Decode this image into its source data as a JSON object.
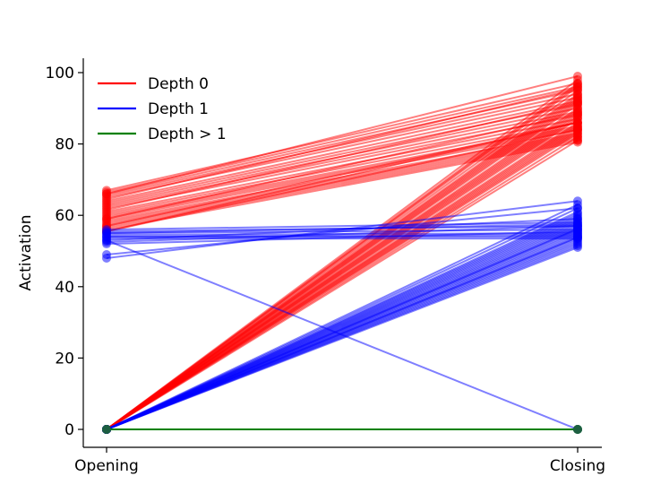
{
  "chart_data": {
    "type": "line",
    "title": "",
    "xlabel": "",
    "ylabel": "Activation",
    "categories": [
      "Opening",
      "Closing"
    ],
    "ylim": [
      -4,
      103
    ],
    "yticks": [
      0,
      20,
      40,
      60,
      80,
      100
    ],
    "grid": false,
    "legend_position": "top-left",
    "legend": [
      {
        "name": "Depth 0",
        "color": "#ff0000"
      },
      {
        "name": "Depth 1",
        "color": "#0000ff"
      },
      {
        "name": "Depth > 1",
        "color": "#008000"
      }
    ],
    "series": [
      {
        "name": "Depth 0",
        "color": "#ff0000",
        "pairs": [
          [
            67,
            97
          ],
          [
            66.5,
            96
          ],
          [
            66,
            95
          ],
          [
            65.5,
            94
          ],
          [
            65,
            93
          ],
          [
            64,
            92
          ],
          [
            63.5,
            91
          ],
          [
            63,
            90
          ],
          [
            62.5,
            89
          ],
          [
            62,
            88
          ],
          [
            61,
            87
          ],
          [
            60.5,
            86
          ],
          [
            60,
            85
          ],
          [
            59.5,
            84.5
          ],
          [
            59,
            84
          ],
          [
            58.5,
            83
          ],
          [
            58,
            82.5
          ],
          [
            57.5,
            82
          ],
          [
            57,
            81.5
          ],
          [
            56.5,
            81
          ],
          [
            56,
            80.5
          ],
          [
            55.5,
            86
          ],
          [
            66,
            99
          ],
          [
            64.5,
            95.5
          ],
          [
            61.5,
            91.5
          ],
          [
            59,
            88.5
          ],
          [
            57,
            86
          ],
          [
            55.5,
            84
          ],
          [
            0,
            98
          ],
          [
            0,
            97
          ],
          [
            0,
            96
          ],
          [
            0,
            95
          ],
          [
            0,
            94
          ],
          [
            0,
            93.5
          ],
          [
            0,
            93
          ],
          [
            0,
            92
          ],
          [
            0,
            91.5
          ],
          [
            0,
            91
          ],
          [
            0,
            90
          ],
          [
            0,
            89.5
          ],
          [
            0,
            89
          ],
          [
            0,
            88
          ],
          [
            0,
            87.5
          ],
          [
            0,
            87
          ],
          [
            0,
            86
          ],
          [
            0,
            85.5
          ],
          [
            0,
            85
          ],
          [
            0,
            84
          ],
          [
            0,
            83.5
          ],
          [
            0,
            83
          ],
          [
            0,
            82
          ],
          [
            0,
            81
          ],
          [
            0,
            96.5
          ],
          [
            0,
            92.5
          ],
          [
            0,
            88.5
          ],
          [
            0,
            84.5
          ]
        ]
      },
      {
        "name": "Depth 1",
        "color": "#0000ff",
        "pairs": [
          [
            56,
            58
          ],
          [
            55.5,
            57
          ],
          [
            55,
            56
          ],
          [
            54.5,
            55
          ],
          [
            54,
            54
          ],
          [
            53.5,
            53.5
          ],
          [
            53,
            59
          ],
          [
            52,
            55.5
          ],
          [
            55,
            57.5
          ],
          [
            54,
            54.5
          ],
          [
            48,
            64
          ],
          [
            49,
            62
          ],
          [
            52.5,
            57
          ],
          [
            53,
            0
          ],
          [
            0,
            63
          ],
          [
            0,
            62
          ],
          [
            0,
            61
          ],
          [
            0,
            60
          ],
          [
            0,
            59.5
          ],
          [
            0,
            59
          ],
          [
            0,
            58.5
          ],
          [
            0,
            58
          ],
          [
            0,
            57.5
          ],
          [
            0,
            57
          ],
          [
            0,
            56.5
          ],
          [
            0,
            56
          ],
          [
            0,
            55.5
          ],
          [
            0,
            55
          ],
          [
            0,
            54.5
          ],
          [
            0,
            54
          ],
          [
            0,
            53.5
          ],
          [
            0,
            53
          ],
          [
            0,
            52.5
          ],
          [
            0,
            52
          ],
          [
            0,
            51.5
          ],
          [
            0,
            51
          ],
          [
            0,
            60.5
          ],
          [
            0,
            56.2
          ],
          [
            0,
            53.8
          ]
        ]
      },
      {
        "name": "Depth > 1",
        "color": "#008000",
        "pairs": [
          [
            0,
            0
          ],
          [
            0,
            0
          ],
          [
            0,
            0
          ]
        ]
      }
    ]
  }
}
